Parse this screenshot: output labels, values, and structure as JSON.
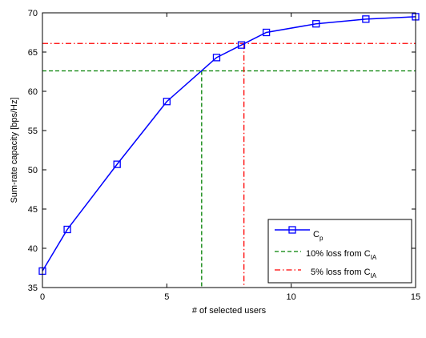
{
  "chart_data": {
    "type": "line",
    "title": "",
    "xlabel": "# of selected users",
    "ylabel": "Sum-rate capacity [bps/Hz]",
    "xlim": [
      0,
      15
    ],
    "ylim": [
      35,
      70
    ],
    "xticks": [
      0,
      5,
      10,
      15
    ],
    "yticks": [
      35,
      40,
      45,
      50,
      55,
      60,
      65,
      70
    ],
    "grid": false,
    "legend_position": "bottom-right",
    "series": [
      {
        "name": "Cp",
        "name_main": "C",
        "name_sub": "p",
        "color": "#0000ff",
        "line_style": "solid",
        "marker": "square",
        "x": [
          0,
          1,
          3,
          5,
          7,
          8,
          9,
          11,
          13,
          15
        ],
        "y": [
          37.1,
          42.4,
          50.7,
          58.7,
          64.3,
          65.9,
          67.5,
          68.6,
          69.2,
          69.5
        ]
      }
    ],
    "reference_lines": [
      {
        "name": "10% loss from CIA",
        "label_main": "10% loss from C",
        "label_sub": "IA",
        "color": "#008000",
        "line_style": "dashed",
        "y": 62.6,
        "x_cross": 6.4
      },
      {
        "name": "5% loss from CIA",
        "label_main": "5% loss from C",
        "label_sub": "IA",
        "color": "#ff0000",
        "line_style": "dashdot",
        "y": 66.1,
        "x_cross": 8.1
      }
    ]
  }
}
